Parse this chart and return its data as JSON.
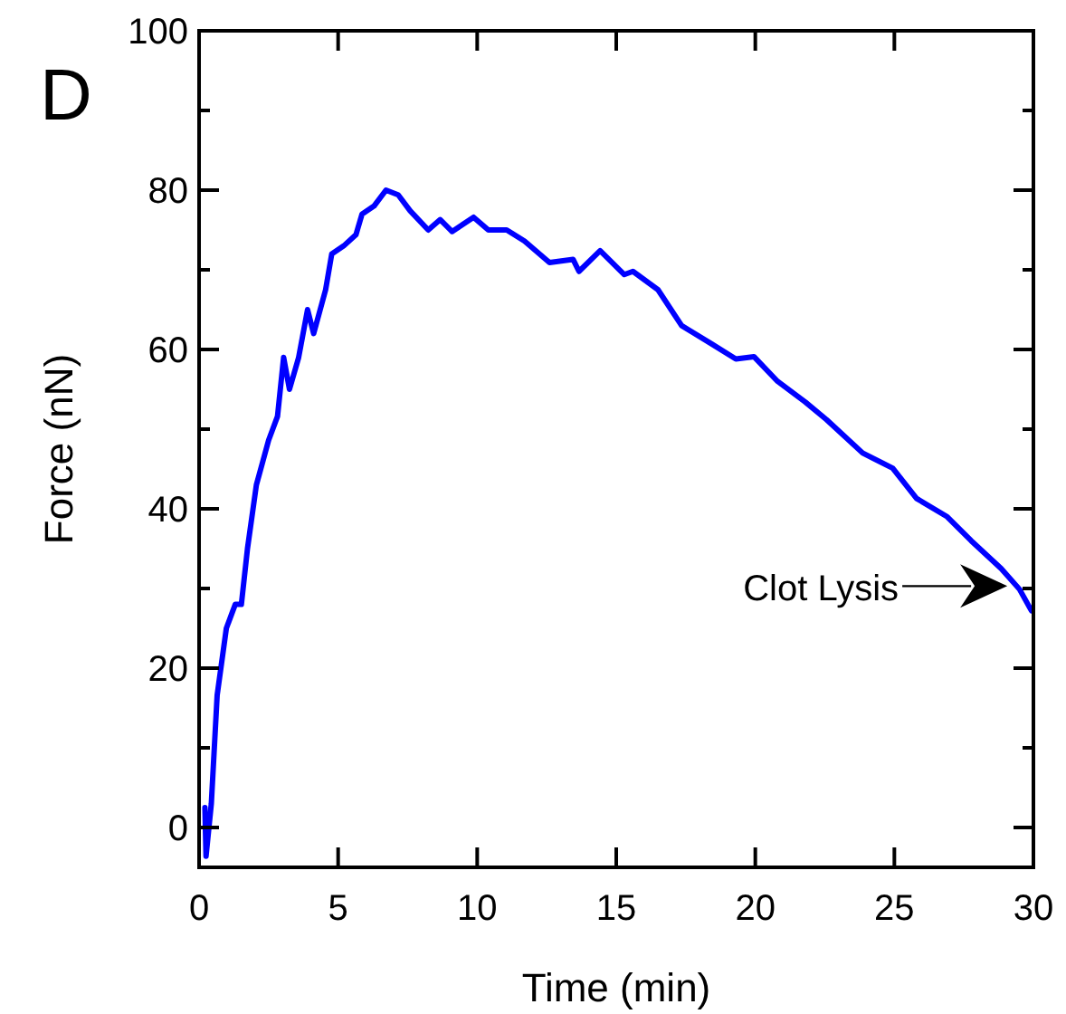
{
  "chart_data": {
    "type": "line",
    "xlabel": "Time (min)",
    "ylabel": "Force (nN)",
    "annotations": [
      "D",
      {
        "text": "Clot Lysis",
        "x": 29.06,
        "y": 30.3
      }
    ],
    "x": [
      0.21,
      0.25,
      0.44,
      0.65,
      0.98,
      1.3,
      1.52,
      1.74,
      2.06,
      2.5,
      2.82,
      3.04,
      3.25,
      3.58,
      3.9,
      4.12,
      4.55,
      4.77,
      5.2,
      5.64,
      5.86,
      6.29,
      6.72,
      7.16,
      7.59,
      8.24,
      8.67,
      9.1,
      9.87,
      10.4,
      11.06,
      11.7,
      12.6,
      13.45,
      13.66,
      14.42,
      15.29,
      15.6,
      16.5,
      17.35,
      18.43,
      19.3,
      19.95,
      20.8,
      21.8,
      22.56,
      23.86,
      24.94,
      25.8,
      26.9,
      27.76,
      28.84,
      29.5,
      29.93
    ],
    "series": [
      {
        "color": "#0000ff",
        "values": [
          2.5,
          -3.6,
          3,
          16.6,
          25,
          28,
          28,
          35,
          43,
          48.6,
          51.6,
          59,
          55,
          59,
          65,
          62,
          67.5,
          72,
          73,
          74.4,
          77,
          78,
          80,
          79.4,
          77.4,
          75,
          76.3,
          74.8,
          76.6,
          75,
          75,
          73.6,
          70.9,
          71.3,
          69.8,
          72.4,
          69.4,
          69.8,
          67.5,
          63,
          60.7,
          58.8,
          59.1,
          56,
          53.4,
          51.2,
          47,
          45.1,
          41.3,
          39,
          36,
          32.5,
          29.9,
          27.2
        ]
      }
    ],
    "xlim": [
      0,
      30
    ],
    "xticks": [
      0,
      5,
      10,
      15,
      20,
      25,
      30
    ],
    "ylim": [
      -5,
      100
    ],
    "yticks": [
      0,
      {
        "value": 10,
        "label": null
      },
      20,
      {
        "value": 30,
        "label": null
      },
      40,
      {
        "value": 50,
        "label": null
      },
      60,
      {
        "value": 70,
        "label": null
      },
      80,
      {
        "value": 90,
        "label": null
      },
      100
    ],
    "grid": false,
    "marker": "none",
    "line_style": "solid"
  }
}
